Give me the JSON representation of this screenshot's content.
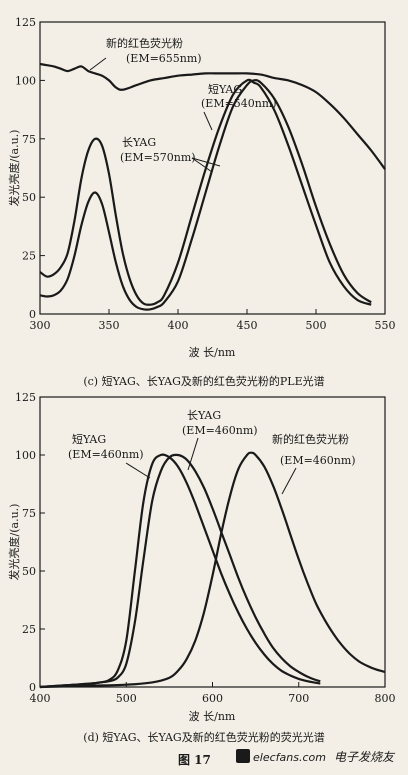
{
  "chart_data": [
    {
      "type": "line",
      "title": "",
      "caption": "(c) 短YAG、长YAG及新的红色荧光粉的PLE光谱",
      "xlabel": "波 长/nm",
      "ylabel": "发光亮度/(a.u.)",
      "xlim": [
        300,
        550
      ],
      "ylim": [
        0,
        125
      ],
      "xticks": [
        "300",
        "350",
        "400",
        "450",
        "500",
        "550"
      ],
      "yticks": [
        "0",
        "25",
        "50",
        "75",
        "100",
        "125"
      ],
      "grid": false,
      "series": [
        {
          "name": "新的红色荧光粉",
          "annotation": [
            "新的红色荧光粉",
            "(EM=655nm)"
          ],
          "x": [
            300,
            305,
            310,
            315,
            320,
            325,
            330,
            335,
            340,
            345,
            350,
            355,
            360,
            370,
            380,
            390,
            400,
            410,
            420,
            430,
            440,
            450,
            460,
            470,
            480,
            490,
            500,
            510,
            520,
            530,
            540,
            550
          ],
          "y": [
            107,
            106.5,
            106,
            105,
            104,
            105,
            106,
            104,
            103,
            102,
            100,
            97,
            96,
            98,
            100,
            101,
            102,
            102.5,
            103,
            103,
            103,
            103,
            102.5,
            101,
            100,
            98,
            95,
            90,
            84,
            77,
            70,
            62
          ]
        },
        {
          "name": "短YAG",
          "annotation": [
            "短YAG",
            "(EM=540nm)"
          ],
          "x": [
            300,
            305,
            310,
            315,
            320,
            325,
            330,
            335,
            340,
            345,
            350,
            355,
            360,
            365,
            370,
            375,
            380,
            385,
            390,
            400,
            410,
            420,
            430,
            440,
            450,
            455,
            460,
            470,
            480,
            490,
            500,
            510,
            520,
            530,
            540
          ],
          "y": [
            18,
            16,
            17,
            20,
            26,
            40,
            58,
            70,
            75,
            72,
            60,
            42,
            26,
            15,
            8,
            4.5,
            4,
            5,
            8,
            22,
            42,
            62,
            80,
            94,
            100,
            99,
            97,
            87,
            72,
            55,
            38,
            22,
            12,
            6,
            4
          ]
        },
        {
          "name": "长YAG",
          "annotation": [
            "长YAG",
            "(EM=570nm)"
          ],
          "x": [
            300,
            305,
            310,
            315,
            320,
            325,
            330,
            335,
            340,
            345,
            350,
            355,
            360,
            365,
            370,
            375,
            380,
            385,
            390,
            400,
            410,
            420,
            430,
            440,
            450,
            455,
            460,
            470,
            480,
            490,
            500,
            510,
            520,
            530,
            540
          ],
          "y": [
            8,
            7.5,
            8,
            10,
            15,
            25,
            38,
            48,
            52,
            47,
            35,
            22,
            12,
            6,
            3,
            2,
            2,
            3,
            5,
            14,
            32,
            52,
            72,
            89,
            98,
            100,
            99,
            92,
            80,
            64,
            46,
            30,
            17,
            9,
            5
          ]
        }
      ]
    },
    {
      "type": "line",
      "title": "",
      "caption": "(d) 短YAG、长YAG及新的红色荧光粉的荧光光谱",
      "xlabel": "波 长/nm",
      "ylabel": "发光亮度/(a.u.)",
      "xlim": [
        400,
        800
      ],
      "ylim": [
        0,
        125
      ],
      "xticks": [
        "400",
        "500",
        "600",
        "700",
        "800"
      ],
      "yticks": [
        "0",
        "25",
        "50",
        "75",
        "100",
        "125"
      ],
      "grid": false,
      "series": [
        {
          "name": "短YAG",
          "annotation": [
            "短YAG",
            "(EM=460nm)"
          ],
          "x": [
            400,
            420,
            440,
            460,
            470,
            480,
            490,
            500,
            510,
            520,
            530,
            540,
            550,
            560,
            570,
            580,
            590,
            600,
            610,
            620,
            630,
            640,
            650,
            660,
            670,
            680,
            690,
            700,
            710,
            720,
            725
          ],
          "y": [
            0,
            0.5,
            1,
            1.5,
            2,
            3,
            7,
            20,
            50,
            80,
            96,
            100,
            99,
            95,
            88,
            79,
            69,
            59,
            49,
            40,
            32,
            25,
            19,
            14,
            10,
            7,
            5,
            3.5,
            2.5,
            1.8,
            1.5
          ]
        },
        {
          "name": "长YAG",
          "annotation": [
            "长YAG",
            "(EM=460nm)"
          ],
          "x": [
            400,
            420,
            440,
            460,
            470,
            480,
            490,
            500,
            510,
            520,
            530,
            540,
            550,
            560,
            570,
            580,
            590,
            600,
            610,
            620,
            630,
            640,
            650,
            660,
            670,
            680,
            690,
            700,
            710,
            720,
            725
          ],
          "y": [
            0,
            0.5,
            1,
            1.5,
            2,
            2.5,
            4,
            10,
            28,
            55,
            80,
            93,
            99,
            100,
            98,
            93,
            86,
            77,
            67,
            57,
            47,
            38,
            30,
            23,
            17,
            12.5,
            9,
            6.5,
            4.5,
            3,
            2.5
          ]
        },
        {
          "name": "新的红色荧光粉",
          "annotation": [
            "新的红色荧光粉",
            "(EM=460nm)"
          ],
          "x": [
            400,
            450,
            500,
            530,
            550,
            560,
            570,
            580,
            590,
            600,
            610,
            620,
            630,
            640,
            645,
            650,
            660,
            670,
            680,
            690,
            700,
            710,
            720,
            730,
            740,
            750,
            760,
            770,
            780,
            790,
            800
          ],
          "y": [
            0,
            0.5,
            1,
            2,
            4,
            7,
            12,
            20,
            32,
            48,
            66,
            82,
            94,
            100,
            101,
            100,
            95,
            87,
            77,
            66,
            55,
            45,
            36,
            29,
            23,
            18,
            14,
            11,
            9,
            7.5,
            6.5
          ]
        }
      ]
    }
  ],
  "figure_label": "图  17",
  "watermark": {
    "site": "elecfans.com",
    "name": "电子发烧友"
  }
}
